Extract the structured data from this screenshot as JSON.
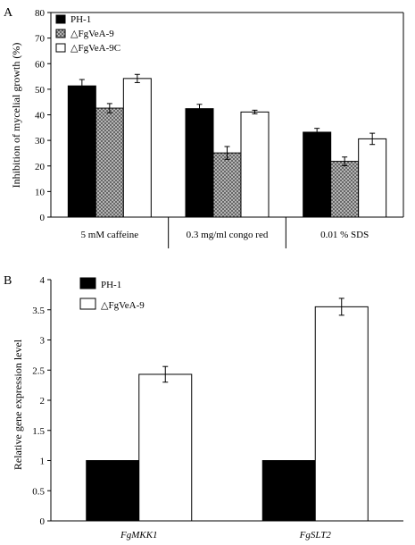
{
  "chart_data": [
    {
      "type": "bar",
      "panel_label": "A",
      "ylabel": "Inhibition of mycelial growth (%)",
      "ylim": [
        0,
        80
      ],
      "yticks": [
        0,
        10,
        20,
        30,
        40,
        50,
        60,
        70,
        80
      ],
      "categories": [
        "5 mM caffeine",
        "0.3 mg/ml congo red",
        "0.01 % SDS"
      ],
      "legend_position": "top-left",
      "series": [
        {
          "name": "PH-1",
          "fill": "#000000",
          "pattern": "solid",
          "values": [
            51.3,
            42.4,
            33.2
          ],
          "errors": [
            2.5,
            1.7,
            1.5
          ]
        },
        {
          "name": "△FgVeA-9",
          "fill": "#999999",
          "pattern": "crosshatch",
          "values": [
            42.6,
            25.1,
            21.8
          ],
          "errors": [
            1.8,
            2.5,
            1.7
          ]
        },
        {
          "name": "△FgVeA-9C",
          "fill": "#ffffff",
          "pattern": "solid",
          "values": [
            54.2,
            41.1,
            30.6
          ],
          "errors": [
            1.6,
            0.7,
            2.2
          ]
        }
      ]
    },
    {
      "type": "bar",
      "panel_label": "B",
      "ylabel": "Relative gene expression level",
      "ylim": [
        0,
        4
      ],
      "yticks": [
        "0",
        "0.5",
        "1",
        "1.5",
        "2",
        "2.5",
        "3",
        "3.5",
        "4"
      ],
      "categories": [
        "FgMKK1",
        "FgSLT2"
      ],
      "category_style": "italic",
      "legend_position": "top-left",
      "series": [
        {
          "name": "PH-1",
          "fill": "#000000",
          "pattern": "solid",
          "values": [
            1.0,
            1.0
          ],
          "errors": [
            0,
            0
          ]
        },
        {
          "name": "△FgVeA-9",
          "fill": "#ffffff",
          "pattern": "solid",
          "values": [
            2.43,
            3.55
          ],
          "errors": [
            0.13,
            0.14
          ]
        }
      ]
    }
  ]
}
